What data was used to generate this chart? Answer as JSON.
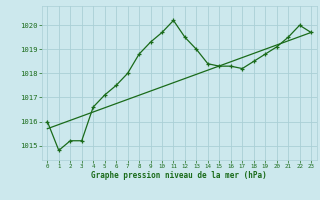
{
  "title": "Graphe pression niveau de la mer (hPa)",
  "bg_color": "#cce8ed",
  "grid_color": "#aacfd6",
  "line_color": "#1a6b1a",
  "x_values": [
    0,
    1,
    2,
    3,
    4,
    5,
    6,
    7,
    8,
    9,
    10,
    11,
    12,
    13,
    14,
    15,
    16,
    17,
    18,
    19,
    20,
    21,
    22,
    23
  ],
  "y_main": [
    1016.0,
    1014.8,
    1015.2,
    1015.2,
    1016.6,
    1017.1,
    1017.5,
    1018.0,
    1018.8,
    1019.3,
    1019.7,
    1020.2,
    1019.5,
    1019.0,
    1018.4,
    1018.3,
    1018.3,
    1018.2,
    1018.5,
    1018.8,
    1019.1,
    1019.5,
    1020.0,
    1019.7
  ],
  "trend_x": [
    0,
    23
  ],
  "trend_y": [
    1015.7,
    1019.7
  ],
  "ylim_min": 1014.4,
  "ylim_max": 1020.8,
  "xlim_min": -0.5,
  "xlim_max": 23.5,
  "yticks": [
    1015,
    1016,
    1017,
    1018,
    1019,
    1020
  ],
  "xticks": [
    0,
    1,
    2,
    3,
    4,
    5,
    6,
    7,
    8,
    9,
    10,
    11,
    12,
    13,
    14,
    15,
    16,
    17,
    18,
    19,
    20,
    21,
    22,
    23
  ]
}
